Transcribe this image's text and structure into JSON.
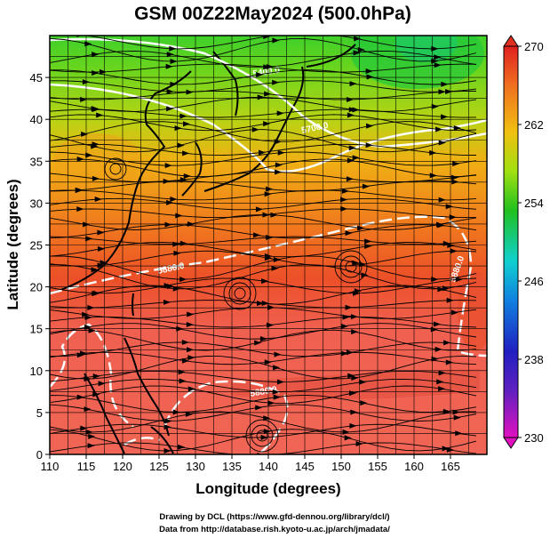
{
  "title": "GSM 00Z22May2024 (500.0hPa)",
  "credits": {
    "line1": "Drawing by DCL (https://www.gfd-dennou.org/library/dcl/)",
    "line2": "Data from http://database.rish.kyoto-u.ac.jp/arch/jmadata/"
  },
  "chart_data": {
    "type": "heatmap",
    "title": "GSM 00Z22May2024 (500.0hPa)",
    "xlabel": "Longitude (degrees)",
    "ylabel": "Latitude  (degrees)",
    "xlim": [
      110,
      170
    ],
    "ylim": [
      0,
      50
    ],
    "x_ticks": [
      110,
      115,
      120,
      125,
      130,
      135,
      140,
      145,
      150,
      155,
      160,
      165
    ],
    "y_ticks": [
      0,
      5,
      10,
      15,
      20,
      25,
      30,
      35,
      40,
      45
    ],
    "grid": true,
    "colorbar": {
      "min": 230,
      "max": 270,
      "ticks": [
        230,
        238,
        246,
        254,
        262,
        270
      ],
      "colors": [
        "#e010c0",
        "#2020c0",
        "#1090e0",
        "#10d0d0",
        "#20c020",
        "#a0e010",
        "#f0c010",
        "#f07020",
        "#e03020"
      ]
    },
    "contours": [
      {
        "label": "5880.0",
        "style": "dashed"
      },
      {
        "label": "5880.0",
        "style": "dashed"
      },
      {
        "label": "5880.0",
        "style": "dashed"
      },
      {
        "label": "5700.0",
        "style": "solid"
      },
      {
        "label": "5400.0",
        "style": "solid"
      }
    ],
    "field_samples": [
      {
        "lon": 112,
        "lat": 47,
        "value": 261
      },
      {
        "lon": 130,
        "lat": 47,
        "value": 257
      },
      {
        "lon": 150,
        "lat": 47,
        "value": 253
      },
      {
        "lon": 160,
        "lat": 46,
        "value": 250
      },
      {
        "lon": 112,
        "lat": 38,
        "value": 263
      },
      {
        "lon": 140,
        "lat": 38,
        "value": 258
      },
      {
        "lon": 165,
        "lat": 38,
        "value": 259
      },
      {
        "lon": 112,
        "lat": 28,
        "value": 266
      },
      {
        "lon": 140,
        "lat": 28,
        "value": 267
      },
      {
        "lon": 165,
        "lat": 28,
        "value": 267
      },
      {
        "lon": 120,
        "lat": 15,
        "value": 268
      },
      {
        "lon": 150,
        "lat": 15,
        "value": 269
      },
      {
        "lon": 130,
        "lat": 5,
        "value": 269
      }
    ]
  }
}
